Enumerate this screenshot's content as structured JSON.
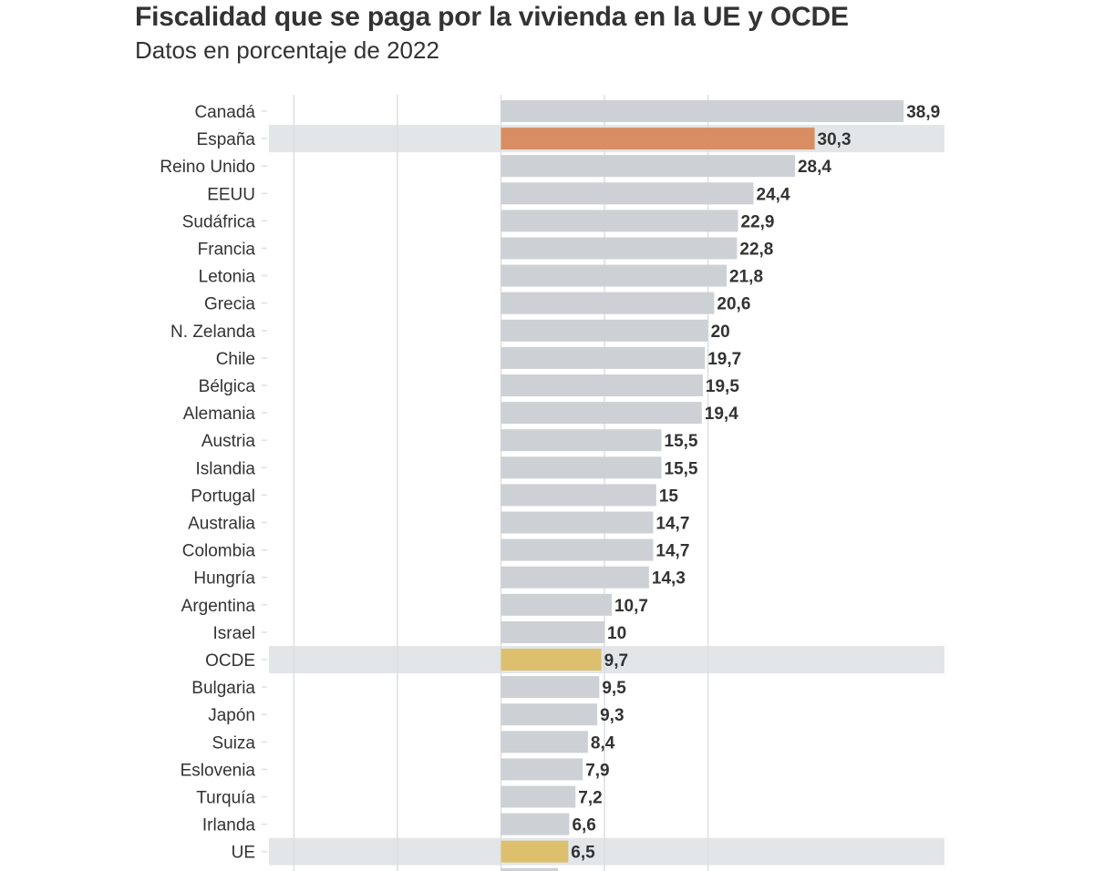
{
  "header": {
    "title": "Fiscalidad que se paga por la vivienda en la UE y OCDE",
    "subtitle": "Datos en porcentaje de 2022"
  },
  "colors": {
    "bar_default": "#cdd0d5",
    "bar_spain": "#d88d62",
    "bar_aggregate": "#dcc06e",
    "highlight_band": "#e2e6e9",
    "gridline": "#dcdfe2",
    "label_text": "#333333"
  },
  "chart_data": {
    "type": "bar",
    "orientation": "horizontal",
    "title": "Fiscalidad que se paga por la vivienda en la UE y OCDE",
    "subtitle": "Datos en porcentaje de 2022",
    "xlabel": "",
    "ylabel": "",
    "xlim": [
      -20,
      40
    ],
    "gridlines_at": [
      -20,
      -10,
      0,
      10,
      20
    ],
    "categories": [
      "Canadá",
      "España",
      "Reino Unido",
      "EEUU",
      "Sudáfrica",
      "Francia",
      "Letonia",
      "Grecia",
      "N. Zelanda",
      "Chile",
      "Bélgica",
      "Alemania",
      "Austria",
      "Islandia",
      "Portugal",
      "Australia",
      "Colombia",
      "Hungría",
      "Argentina",
      "Israel",
      "OCDE",
      "Bulgaria",
      "Japón",
      "Suiza",
      "Eslovenia",
      "Turquía",
      "Irlanda",
      "UE"
    ],
    "values": [
      38.9,
      30.3,
      28.4,
      24.4,
      22.9,
      22.8,
      21.8,
      20.6,
      20,
      19.7,
      19.5,
      19.4,
      15.5,
      15.5,
      15,
      14.7,
      14.7,
      14.3,
      10.7,
      10,
      9.7,
      9.5,
      9.3,
      8.4,
      7.9,
      7.2,
      6.6,
      6.5
    ],
    "value_labels": [
      "38,9",
      "30,3",
      "28,4",
      "24,4",
      "22,9",
      "22,8",
      "21,8",
      "20,6",
      "20",
      "19,7",
      "19,5",
      "19,4",
      "15,5",
      "15,5",
      "15",
      "14,7",
      "14,7",
      "14,3",
      "10,7",
      "10",
      "9,7",
      "9,5",
      "9,3",
      "8,4",
      "7,9",
      "7,2",
      "6,6",
      "6,5"
    ],
    "highlight": [
      "España",
      "OCDE",
      "UE"
    ],
    "bar_color_role": [
      "default",
      "spain",
      "default",
      "default",
      "default",
      "default",
      "default",
      "default",
      "default",
      "default",
      "default",
      "default",
      "default",
      "default",
      "default",
      "default",
      "default",
      "default",
      "default",
      "default",
      "aggregate",
      "default",
      "default",
      "default",
      "default",
      "default",
      "default",
      "aggregate"
    ]
  }
}
